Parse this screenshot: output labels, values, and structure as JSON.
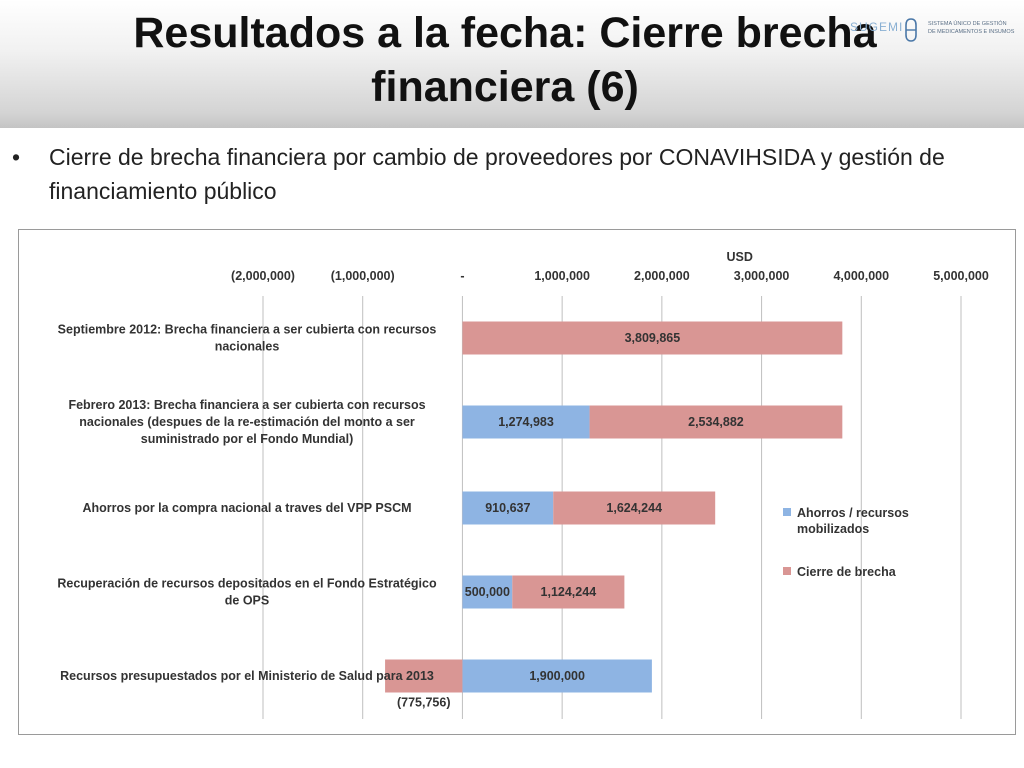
{
  "slide": {
    "title": "Resultados a la fecha: Cierre brecha financiera (6)",
    "logo_word": "SUGEMI",
    "logo_sub_1": "SISTEMA ÚNICO DE GESTIÓN",
    "logo_sub_2": "DE MEDICAMENTOS E INSUMOS",
    "bullet_symbol": "•",
    "bullet_text": "Cierre de brecha financiera por cambio de proveedores  por CONAVIHSIDA y gestión de financiamiento público"
  },
  "colors": {
    "ahorros": "#8eb4e3",
    "cierre": "#d99694",
    "grid": "#bfbfbf",
    "text": "#333333"
  },
  "chart_data": {
    "type": "bar",
    "orientation": "horizontal",
    "stacked": true,
    "axis_title": "USD",
    "xlim": [
      -2000000,
      5000000
    ],
    "ticks": [
      -2000000,
      -1000000,
      0,
      1000000,
      2000000,
      3000000,
      4000000,
      5000000
    ],
    "tick_labels": [
      "(2,000,000)",
      "(1,000,000)",
      "-",
      "1,000,000",
      "2,000,000",
      "3,000,000",
      "4,000,000",
      "5,000,000"
    ],
    "categories": [
      [
        "Septiembre 2012: Brecha financiera a ser cubierta con recursos",
        "nacionales"
      ],
      [
        "Febrero 2013: Brecha financiera a ser cubierta con recursos",
        "nacionales (despues de la re-estimación del monto a ser",
        "suministrado por el Fondo Mundial)"
      ],
      [
        "Ahorros por la compra nacional a traves del VPP PSCM"
      ],
      [
        "Recuperación de recursos depositados en el Fondo Estratégico",
        "de OPS"
      ],
      [
        "Recursos presupuestados por el Ministerio de Salud para 2013"
      ]
    ],
    "series": [
      {
        "name": "Ahorros / recursos mobilizados",
        "values": [
          0,
          1274983,
          910637,
          500000,
          1900000
        ],
        "labels": [
          "",
          "1,274,983",
          "910,637",
          "500,000",
          "1,900,000"
        ]
      },
      {
        "name": "Cierre de brecha",
        "values": [
          3809865,
          2534882,
          1624244,
          1124244,
          -775756
        ],
        "labels": [
          "3,809,865",
          "2,534,882",
          "1,624,244",
          "1,124,244",
          "(775,756)"
        ]
      }
    ],
    "legend": {
      "position": "right",
      "entries": [
        {
          "lines": [
            "Ahorros / recursos",
            "mobilizados"
          ]
        },
        {
          "lines": [
            "Cierre de brecha"
          ]
        }
      ]
    },
    "grid": true
  }
}
